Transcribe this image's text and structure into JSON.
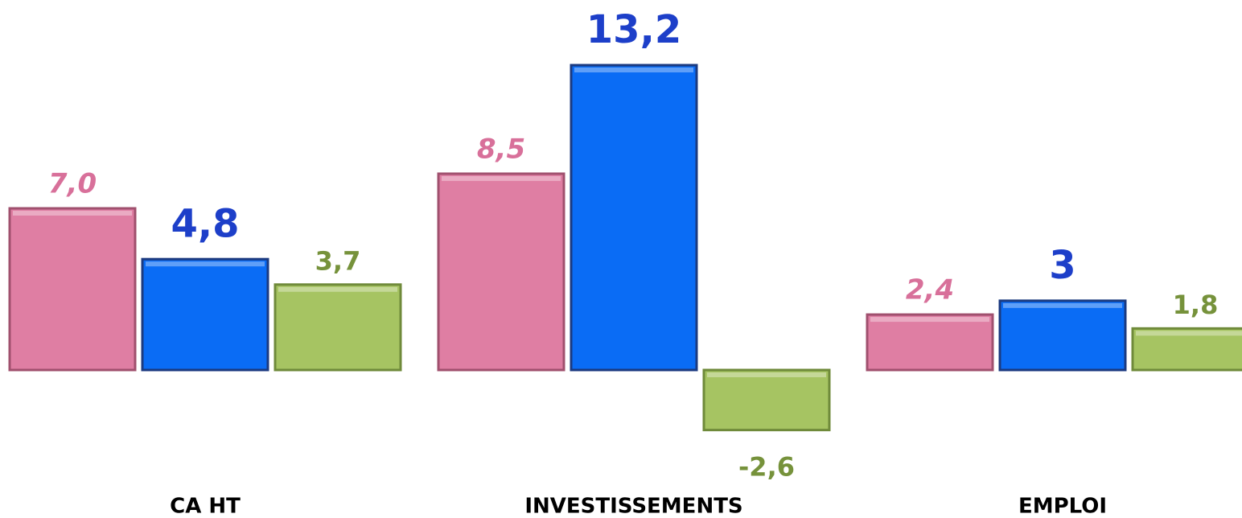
{
  "chart_data": {
    "type": "bar",
    "categories": [
      "CA HT",
      "INVESTISSEMENTS",
      "EMPLOI"
    ],
    "series": [
      {
        "color": "#df7ea3",
        "label_color": "#d8709a",
        "values": [
          7.0,
          8.5,
          2.4
        ],
        "value_labels": [
          "7,0",
          "8,5",
          "2,4"
        ]
      },
      {
        "color": "#0a6cf5",
        "label_color": "#1d3fc9",
        "values": [
          4.8,
          13.2,
          3
        ],
        "value_labels": [
          "4,8",
          "13,2",
          "3"
        ]
      },
      {
        "color": "#a6c462",
        "label_color": "#76923b",
        "values": [
          3.7,
          -2.6,
          1.8
        ],
        "value_labels": [
          "3,7",
          "-2,6",
          "1,8"
        ]
      }
    ]
  }
}
